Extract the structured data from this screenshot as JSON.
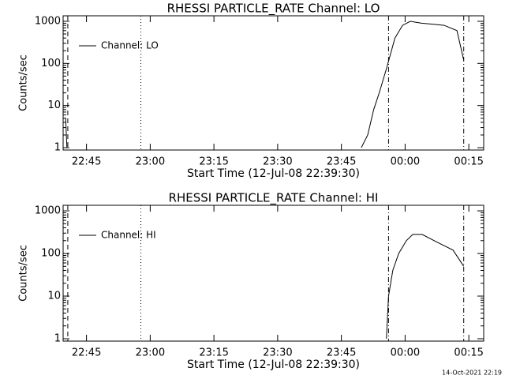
{
  "chart_data": [
    {
      "type": "line",
      "title": "RHESSI PARTICLE_RATE Channel: LO",
      "xlabel": "Start Time (12-Jul-08 22:39:30)",
      "ylabel": "Counts/sec",
      "x": [
        1360.1,
        1360.4,
        1429.0,
        1429.7,
        1431.2,
        1432.6,
        1433.9,
        1435.7,
        1437.6,
        1439.4,
        1441.2,
        1443.9,
        1446.7,
        1449.2,
        1452.2,
        1453.8
      ],
      "series": [
        {
          "name": "Channel: LO",
          "color": "#000000",
          "values": [
            5,
            1,
            null,
            1,
            2,
            8,
            20,
            80,
            400,
            800,
            1000,
            900,
            850,
            800,
            600,
            120
          ]
        }
      ],
      "xlim": [
        1359.5,
        1458.5
      ],
      "xticks": [
        {
          "value": 1365,
          "label": "22:45"
        },
        {
          "value": 1380,
          "label": "23:00"
        },
        {
          "value": 1395,
          "label": "23:15"
        },
        {
          "value": 1410,
          "label": "23:30"
        },
        {
          "value": 1425,
          "label": "23:45"
        },
        {
          "value": 1440,
          "label": "00:00"
        },
        {
          "value": 1455,
          "label": "00:15"
        }
      ],
      "ylim": [
        0.88,
        1350
      ],
      "yticks": [
        1,
        10,
        100,
        1000
      ],
      "log_y": true,
      "legend": "upper left",
      "vlines": [
        {
          "x": 1360.6,
          "style": "dashed"
        },
        {
          "x": 1377.8,
          "style": "dotted"
        },
        {
          "x": 1436.1,
          "style": "dash-dot"
        },
        {
          "x": 1453.8,
          "style": "dash-dot"
        }
      ]
    },
    {
      "type": "line",
      "title": "RHESSI PARTICLE_RATE Channel: HI",
      "xlabel": "Start Time (12-Jul-08 22:39:30)",
      "ylabel": "Counts/sec",
      "x": [
        1435.6,
        1436.1,
        1437.1,
        1438.5,
        1440.3,
        1441.8,
        1444.0,
        1447.7,
        1451.3,
        1453.8
      ],
      "series": [
        {
          "name": "Channel: HI",
          "color": "#000000",
          "values": [
            1,
            10,
            40,
            100,
            200,
            280,
            280,
            180,
            120,
            50
          ]
        }
      ],
      "xlim": [
        1359.5,
        1458.5
      ],
      "xticks": [
        {
          "value": 1365,
          "label": "22:45"
        },
        {
          "value": 1380,
          "label": "23:00"
        },
        {
          "value": 1395,
          "label": "23:15"
        },
        {
          "value": 1410,
          "label": "23:30"
        },
        {
          "value": 1425,
          "label": "23:45"
        },
        {
          "value": 1440,
          "label": "00:00"
        },
        {
          "value": 1455,
          "label": "00:15"
        }
      ],
      "ylim": [
        0.88,
        1350
      ],
      "yticks": [
        1,
        10,
        100,
        1000
      ],
      "log_y": true,
      "legend": "upper left",
      "vlines": [
        {
          "x": 1360.6,
          "style": "dashed"
        },
        {
          "x": 1377.8,
          "style": "dotted"
        },
        {
          "x": 1436.1,
          "style": "dash-dot"
        },
        {
          "x": 1453.8,
          "style": "dash-dot"
        }
      ]
    }
  ],
  "footer": "14-Oct-2021 22:19"
}
